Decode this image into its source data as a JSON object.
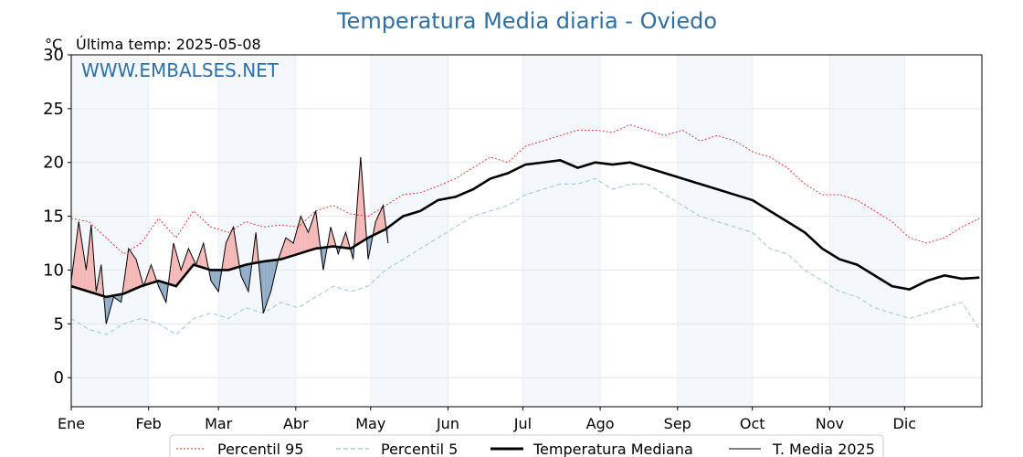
{
  "chart_data": {
    "type": "line",
    "title": "Temperatura Media diaria - Oviedo",
    "unit_label": "°C",
    "last_temp_label": "Última temp: 2025-05-08",
    "watermark": "WWW.EMBALSES.NET",
    "ylim": [
      -2.7,
      30
    ],
    "yticks": [
      0,
      5,
      10,
      15,
      20,
      25,
      30
    ],
    "x_range_days": [
      1,
      366
    ],
    "months": [
      "Ene",
      "Feb",
      "Mar",
      "Abr",
      "May",
      "Jun",
      "Jul",
      "Ago",
      "Sep",
      "Oct",
      "Nov",
      "Dic"
    ],
    "month_start_day": [
      1,
      32,
      60,
      91,
      121,
      152,
      182,
      213,
      244,
      274,
      305,
      335
    ],
    "shaded_months": [
      "Ene",
      "Mar",
      "May",
      "Jul",
      "Sep",
      "Nov"
    ],
    "grid": true,
    "legend_position": "bottom-center",
    "series": [
      {
        "name": "Percentil 95",
        "color": "#e8231f",
        "style": "dotted",
        "x": [
          1,
          8,
          15,
          22,
          29,
          36,
          43,
          50,
          57,
          64,
          71,
          78,
          85,
          92,
          99,
          106,
          113,
          120,
          127,
          134,
          141,
          148,
          155,
          162,
          169,
          176,
          183,
          190,
          197,
          204,
          211,
          218,
          225,
          232,
          239,
          246,
          253,
          260,
          267,
          274,
          281,
          288,
          295,
          302,
          309,
          316,
          323,
          330,
          337,
          344,
          351,
          358,
          365
        ],
        "y": [
          14.8,
          14.5,
          13.0,
          11.5,
          12.5,
          14.8,
          13.0,
          15.5,
          14.0,
          13.5,
          14.5,
          14.0,
          14.2,
          14.0,
          15.5,
          16.0,
          15.2,
          15.0,
          16.0,
          17.0,
          17.2,
          17.8,
          18.5,
          19.5,
          20.5,
          20.0,
          21.5,
          22.0,
          22.5,
          23.0,
          23.0,
          22.8,
          23.5,
          23.0,
          22.5,
          23.0,
          22.0,
          22.5,
          22.0,
          21.0,
          20.5,
          19.5,
          18.0,
          17.0,
          17.0,
          16.5,
          15.5,
          14.5,
          13.0,
          12.5,
          13.0,
          14.0,
          14.8
        ]
      },
      {
        "name": "Percentil 5",
        "color": "#a6cfe1",
        "style": "dashed",
        "x": [
          1,
          8,
          15,
          22,
          29,
          36,
          43,
          50,
          57,
          64,
          71,
          78,
          85,
          92,
          99,
          106,
          113,
          120,
          127,
          134,
          141,
          148,
          155,
          162,
          169,
          176,
          183,
          190,
          197,
          204,
          211,
          218,
          225,
          232,
          239,
          246,
          253,
          260,
          267,
          274,
          281,
          288,
          295,
          302,
          309,
          316,
          323,
          330,
          337,
          344,
          351,
          358,
          365
        ],
        "y": [
          5.5,
          4.5,
          4.0,
          5.0,
          5.5,
          5.0,
          4.0,
          5.5,
          6.0,
          5.5,
          6.5,
          6.0,
          7.0,
          6.5,
          7.5,
          8.5,
          8.0,
          8.5,
          10.0,
          11.0,
          12.0,
          13.0,
          14.0,
          15.0,
          15.5,
          16.0,
          17.0,
          17.5,
          18.0,
          18.0,
          18.5,
          17.5,
          18.0,
          18.0,
          17.0,
          16.0,
          15.0,
          14.5,
          14.0,
          13.5,
          12.0,
          11.5,
          10.0,
          9.0,
          8.0,
          7.5,
          6.5,
          6.0,
          5.5,
          6.0,
          6.5,
          7.0,
          4.5
        ]
      },
      {
        "name": "Temperatura Mediana",
        "color": "#000000",
        "style": "solid-thick",
        "x": [
          1,
          8,
          15,
          22,
          29,
          36,
          43,
          50,
          57,
          64,
          71,
          78,
          85,
          92,
          99,
          106,
          113,
          120,
          127,
          134,
          141,
          148,
          155,
          162,
          169,
          176,
          183,
          190,
          197,
          204,
          211,
          218,
          225,
          232,
          239,
          246,
          253,
          260,
          267,
          274,
          281,
          288,
          295,
          302,
          309,
          316,
          323,
          330,
          337,
          344,
          351,
          358,
          365
        ],
        "y": [
          8.5,
          8.0,
          7.5,
          7.8,
          8.5,
          9.0,
          8.5,
          10.5,
          10.0,
          10.0,
          10.5,
          10.8,
          11.0,
          11.5,
          12.0,
          12.2,
          12.0,
          13.0,
          13.8,
          15.0,
          15.5,
          16.5,
          16.8,
          17.5,
          18.5,
          19.0,
          19.8,
          20.0,
          20.2,
          19.5,
          20.0,
          19.8,
          20.0,
          19.5,
          19.0,
          18.5,
          18.0,
          17.5,
          17.0,
          16.5,
          15.5,
          14.5,
          13.5,
          12.0,
          11.0,
          10.5,
          9.5,
          8.5,
          8.2,
          9.0,
          9.5,
          9.2,
          9.3
        ]
      },
      {
        "name": "T. Media 2025",
        "color": "#000000",
        "style": "solid-thin",
        "x": [
          1,
          4,
          7,
          9,
          11,
          13,
          15,
          18,
          21,
          24,
          27,
          30,
          33,
          36,
          39,
          42,
          45,
          48,
          51,
          54,
          57,
          60,
          63,
          66,
          69,
          72,
          75,
          78,
          81,
          84,
          87,
          90,
          93,
          96,
          99,
          102,
          105,
          108,
          111,
          114,
          117,
          120,
          123,
          126,
          128
        ],
        "y": [
          9.0,
          14.5,
          10.0,
          14.2,
          8.0,
          10.5,
          5.0,
          7.5,
          7.0,
          12.0,
          11.0,
          8.5,
          10.5,
          8.5,
          7.0,
          12.5,
          10.0,
          12.0,
          10.5,
          12.5,
          9.0,
          8.0,
          12.5,
          14.0,
          9.5,
          8.0,
          13.5,
          6.0,
          8.0,
          11.0,
          13.0,
          12.5,
          15.0,
          13.5,
          15.5,
          10.0,
          14.0,
          11.5,
          13.5,
          11.0,
          20.5,
          11.0,
          14.5,
          16.0,
          12.5
        ]
      }
    ]
  }
}
